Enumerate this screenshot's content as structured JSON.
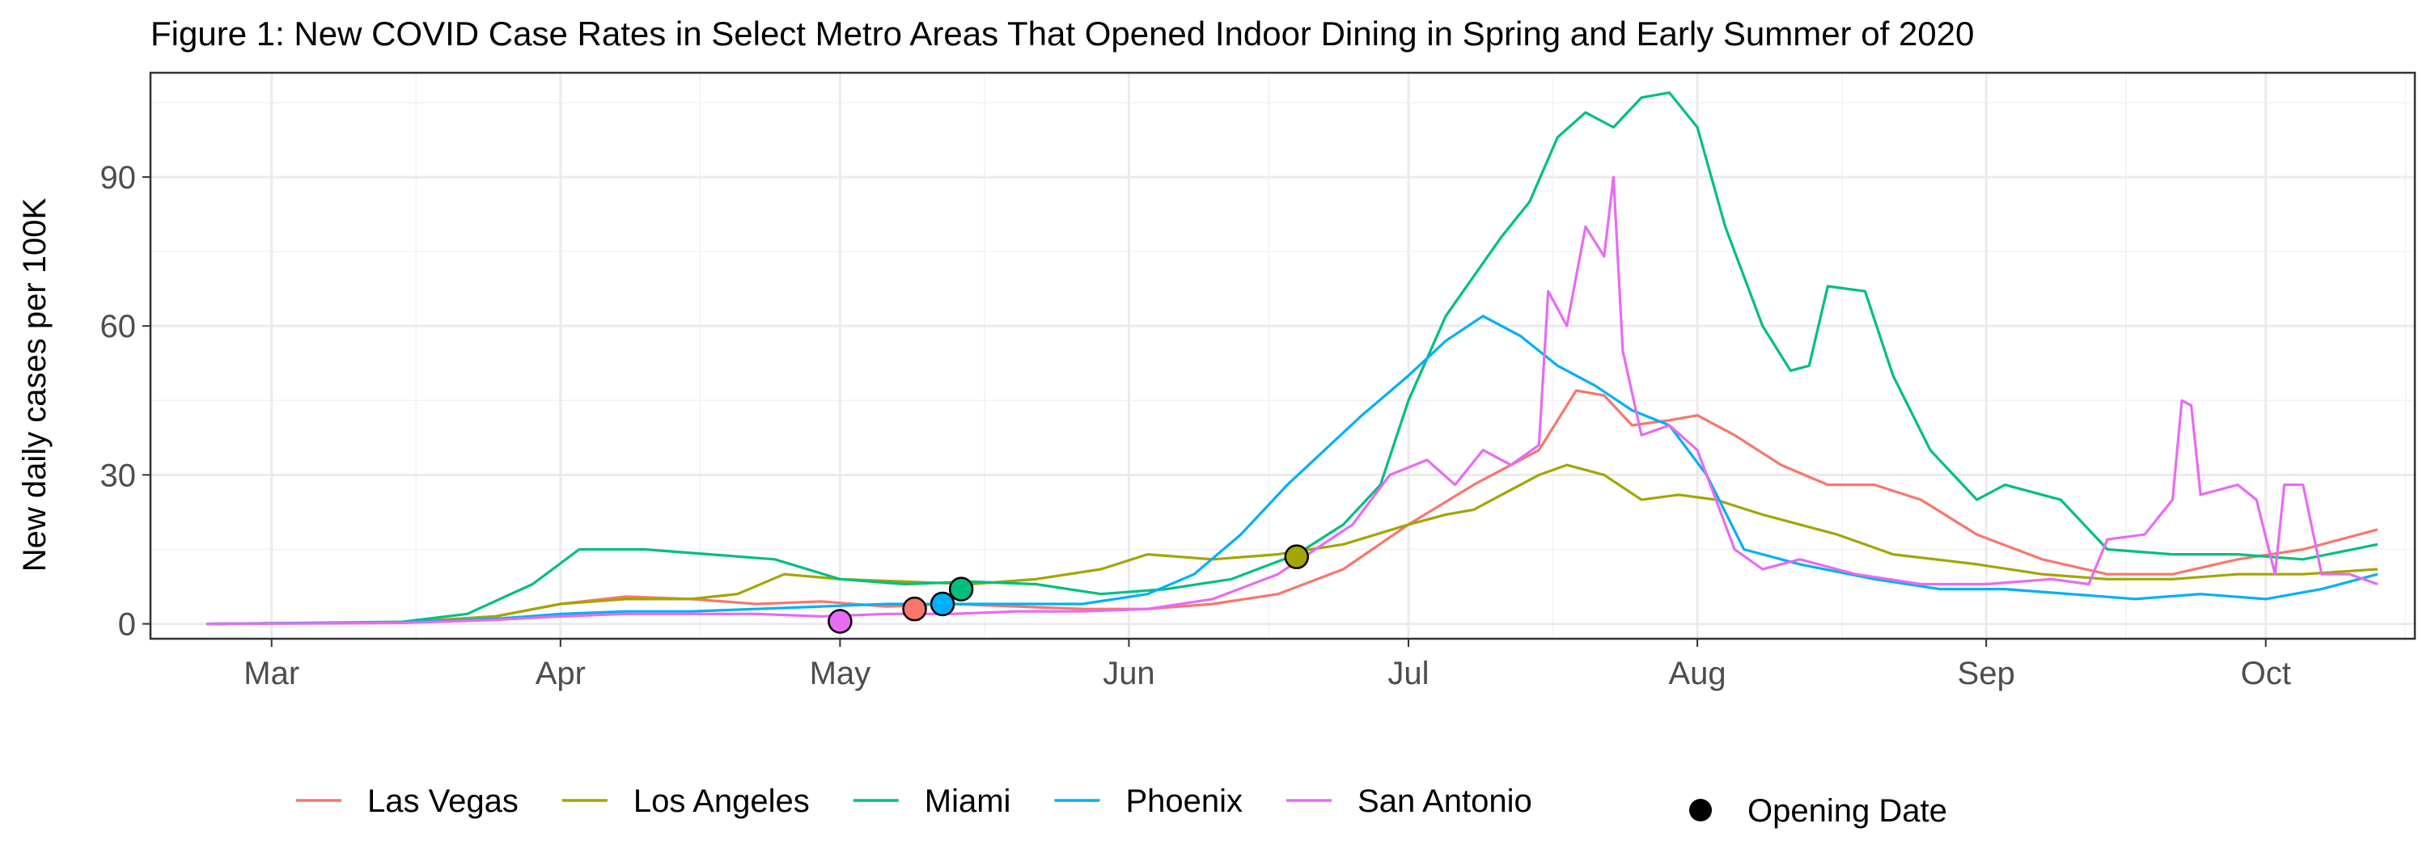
{
  "chart_data": {
    "type": "line",
    "title": "Figure 1: New COVID Case Rates in Select Metro Areas That Opened Indoor Dining in Spring and Early Summer of 2020",
    "xlabel": "",
    "ylabel": "New daily cases per 100K",
    "x_range": [
      "2020-02-17",
      "2020-10-17"
    ],
    "ylim": [
      -3,
      111
    ],
    "x_ticks": [
      {
        "date": "2020-03-01",
        "label": "Mar"
      },
      {
        "date": "2020-04-01",
        "label": "Apr"
      },
      {
        "date": "2020-05-01",
        "label": "May"
      },
      {
        "date": "2020-06-01",
        "label": "Jun"
      },
      {
        "date": "2020-07-01",
        "label": "Jul"
      },
      {
        "date": "2020-08-01",
        "label": "Aug"
      },
      {
        "date": "2020-09-01",
        "label": "Sep"
      },
      {
        "date": "2020-10-01",
        "label": "Oct"
      }
    ],
    "y_ticks": [
      {
        "value": 0,
        "label": "0"
      },
      {
        "value": 30,
        "label": "30"
      },
      {
        "value": 60,
        "label": "60"
      },
      {
        "value": 90,
        "label": "90"
      }
    ],
    "grid": true,
    "legend_position": "bottom",
    "series": [
      {
        "name": "Las Vegas",
        "color": "#F8766D",
        "opening": {
          "x": "2020-05-09",
          "y": 3
        },
        "points": [
          [
            "2020-02-23",
            0
          ],
          [
            "2020-03-15",
            0.3
          ],
          [
            "2020-03-25",
            1.5
          ],
          [
            "2020-04-01",
            4
          ],
          [
            "2020-04-08",
            5.5
          ],
          [
            "2020-04-15",
            5
          ],
          [
            "2020-04-22",
            4
          ],
          [
            "2020-04-29",
            4.5
          ],
          [
            "2020-05-06",
            3.5
          ],
          [
            "2020-05-13",
            4
          ],
          [
            "2020-05-20",
            3.5
          ],
          [
            "2020-05-27",
            3
          ],
          [
            "2020-06-03",
            3
          ],
          [
            "2020-06-10",
            4
          ],
          [
            "2020-06-17",
            6
          ],
          [
            "2020-06-24",
            11
          ],
          [
            "2020-07-01",
            20
          ],
          [
            "2020-07-08",
            28
          ],
          [
            "2020-07-15",
            35
          ],
          [
            "2020-07-19",
            47
          ],
          [
            "2020-07-22",
            46
          ],
          [
            "2020-07-25",
            40
          ],
          [
            "2020-07-29",
            41
          ],
          [
            "2020-08-01",
            42
          ],
          [
            "2020-08-05",
            38
          ],
          [
            "2020-08-10",
            32
          ],
          [
            "2020-08-15",
            28
          ],
          [
            "2020-08-20",
            28
          ],
          [
            "2020-08-25",
            25
          ],
          [
            "2020-08-31",
            18
          ],
          [
            "2020-09-07",
            13
          ],
          [
            "2020-09-14",
            10
          ],
          [
            "2020-09-21",
            10
          ],
          [
            "2020-09-28",
            13
          ],
          [
            "2020-10-05",
            15
          ],
          [
            "2020-10-13",
            19
          ]
        ]
      },
      {
        "name": "Los Angeles",
        "color": "#A3A500",
        "opening": {
          "x": "2020-06-19",
          "y": 13.5
        },
        "points": [
          [
            "2020-02-23",
            0
          ],
          [
            "2020-03-15",
            0.3
          ],
          [
            "2020-03-25",
            1.5
          ],
          [
            "2020-04-01",
            4
          ],
          [
            "2020-04-08",
            5
          ],
          [
            "2020-04-15",
            5
          ],
          [
            "2020-04-20",
            6
          ],
          [
            "2020-04-25",
            10
          ],
          [
            "2020-05-01",
            9
          ],
          [
            "2020-05-08",
            8.5
          ],
          [
            "2020-05-15",
            8
          ],
          [
            "2020-05-22",
            9
          ],
          [
            "2020-05-29",
            11
          ],
          [
            "2020-06-03",
            14
          ],
          [
            "2020-06-10",
            13
          ],
          [
            "2020-06-17",
            14
          ],
          [
            "2020-06-24",
            16
          ],
          [
            "2020-07-01",
            20
          ],
          [
            "2020-07-05",
            22
          ],
          [
            "2020-07-08",
            23
          ],
          [
            "2020-07-12",
            27
          ],
          [
            "2020-07-15",
            30
          ],
          [
            "2020-07-18",
            32
          ],
          [
            "2020-07-22",
            30
          ],
          [
            "2020-07-26",
            25
          ],
          [
            "2020-07-30",
            26
          ],
          [
            "2020-08-03",
            25
          ],
          [
            "2020-08-08",
            22
          ],
          [
            "2020-08-12",
            20
          ],
          [
            "2020-08-16",
            18
          ],
          [
            "2020-08-22",
            14
          ],
          [
            "2020-08-31",
            12
          ],
          [
            "2020-09-07",
            10
          ],
          [
            "2020-09-14",
            9
          ],
          [
            "2020-09-21",
            9
          ],
          [
            "2020-09-28",
            10
          ],
          [
            "2020-10-05",
            10
          ],
          [
            "2020-10-13",
            11
          ]
        ]
      },
      {
        "name": "Miami",
        "color": "#00BF7D",
        "opening": {
          "x": "2020-05-14",
          "y": 7
        },
        "points": [
          [
            "2020-02-23",
            0
          ],
          [
            "2020-03-15",
            0.4
          ],
          [
            "2020-03-22",
            2
          ],
          [
            "2020-03-29",
            8
          ],
          [
            "2020-04-03",
            15
          ],
          [
            "2020-04-10",
            15
          ],
          [
            "2020-04-17",
            14
          ],
          [
            "2020-04-24",
            13
          ],
          [
            "2020-05-01",
            9
          ],
          [
            "2020-05-08",
            8
          ],
          [
            "2020-05-15",
            8.5
          ],
          [
            "2020-05-22",
            8
          ],
          [
            "2020-05-29",
            6
          ],
          [
            "2020-06-05",
            7
          ],
          [
            "2020-06-12",
            9
          ],
          [
            "2020-06-19",
            14
          ],
          [
            "2020-06-24",
            20
          ],
          [
            "2020-06-28",
            28
          ],
          [
            "2020-07-01",
            45
          ],
          [
            "2020-07-05",
            62
          ],
          [
            "2020-07-08",
            70
          ],
          [
            "2020-07-11",
            78
          ],
          [
            "2020-07-14",
            85
          ],
          [
            "2020-07-17",
            98
          ],
          [
            "2020-07-20",
            103
          ],
          [
            "2020-07-23",
            100
          ],
          [
            "2020-07-26",
            106
          ],
          [
            "2020-07-29",
            107
          ],
          [
            "2020-08-01",
            100
          ],
          [
            "2020-08-04",
            80
          ],
          [
            "2020-08-08",
            60
          ],
          [
            "2020-08-11",
            51
          ],
          [
            "2020-08-13",
            52
          ],
          [
            "2020-08-15",
            68
          ],
          [
            "2020-08-19",
            67
          ],
          [
            "2020-08-22",
            50
          ],
          [
            "2020-08-26",
            35
          ],
          [
            "2020-08-31",
            25
          ],
          [
            "2020-09-03",
            28
          ],
          [
            "2020-09-09",
            25
          ],
          [
            "2020-09-14",
            15
          ],
          [
            "2020-09-21",
            14
          ],
          [
            "2020-09-28",
            14
          ],
          [
            "2020-10-05",
            13
          ],
          [
            "2020-10-13",
            16
          ]
        ]
      },
      {
        "name": "Phoenix",
        "color": "#00B0F6",
        "opening": {
          "x": "2020-05-12",
          "y": 4
        },
        "points": [
          [
            "2020-02-23",
            0
          ],
          [
            "2020-03-15",
            0.3
          ],
          [
            "2020-03-25",
            1
          ],
          [
            "2020-04-01",
            2
          ],
          [
            "2020-04-08",
            2.5
          ],
          [
            "2020-04-15",
            2.5
          ],
          [
            "2020-04-22",
            3
          ],
          [
            "2020-04-29",
            3.5
          ],
          [
            "2020-05-06",
            4
          ],
          [
            "2020-05-13",
            4
          ],
          [
            "2020-05-20",
            4
          ],
          [
            "2020-05-27",
            4
          ],
          [
            "2020-06-03",
            6
          ],
          [
            "2020-06-08",
            10
          ],
          [
            "2020-06-13",
            18
          ],
          [
            "2020-06-18",
            28
          ],
          [
            "2020-06-22",
            35
          ],
          [
            "2020-06-26",
            42
          ],
          [
            "2020-07-01",
            50
          ],
          [
            "2020-07-05",
            57
          ],
          [
            "2020-07-09",
            62
          ],
          [
            "2020-07-13",
            58
          ],
          [
            "2020-07-17",
            52
          ],
          [
            "2020-07-21",
            48
          ],
          [
            "2020-07-25",
            43
          ],
          [
            "2020-07-29",
            40
          ],
          [
            "2020-08-02",
            30
          ],
          [
            "2020-08-06",
            15
          ],
          [
            "2020-08-12",
            12
          ],
          [
            "2020-08-20",
            9
          ],
          [
            "2020-08-27",
            7
          ],
          [
            "2020-09-03",
            7
          ],
          [
            "2020-09-10",
            6
          ],
          [
            "2020-09-17",
            5
          ],
          [
            "2020-09-24",
            6
          ],
          [
            "2020-10-01",
            5
          ],
          [
            "2020-10-07",
            7
          ],
          [
            "2020-10-13",
            10
          ]
        ]
      },
      {
        "name": "San Antonio",
        "color": "#E76BF3",
        "opening": {
          "x": "2020-05-01",
          "y": 0.5
        },
        "points": [
          [
            "2020-02-23",
            0
          ],
          [
            "2020-03-15",
            0.2
          ],
          [
            "2020-03-25",
            0.8
          ],
          [
            "2020-04-01",
            1.5
          ],
          [
            "2020-04-08",
            2
          ],
          [
            "2020-04-15",
            2
          ],
          [
            "2020-04-22",
            2
          ],
          [
            "2020-04-29",
            1.5
          ],
          [
            "2020-05-06",
            2
          ],
          [
            "2020-05-13",
            2
          ],
          [
            "2020-05-20",
            2.5
          ],
          [
            "2020-05-27",
            2.5
          ],
          [
            "2020-06-03",
            3
          ],
          [
            "2020-06-10",
            5
          ],
          [
            "2020-06-17",
            10
          ],
          [
            "2020-06-21",
            15
          ],
          [
            "2020-06-25",
            20
          ],
          [
            "2020-06-29",
            30
          ],
          [
            "2020-07-03",
            33
          ],
          [
            "2020-07-06",
            28
          ],
          [
            "2020-07-09",
            35
          ],
          [
            "2020-07-12",
            32
          ],
          [
            "2020-07-15",
            36
          ],
          [
            "2020-07-16",
            67
          ],
          [
            "2020-07-18",
            60
          ],
          [
            "2020-07-20",
            80
          ],
          [
            "2020-07-22",
            74
          ],
          [
            "2020-07-23",
            90
          ],
          [
            "2020-07-24",
            55
          ],
          [
            "2020-07-26",
            38
          ],
          [
            "2020-07-29",
            40
          ],
          [
            "2020-08-01",
            35
          ],
          [
            "2020-08-03",
            25
          ],
          [
            "2020-08-05",
            15
          ],
          [
            "2020-08-08",
            11
          ],
          [
            "2020-08-12",
            13
          ],
          [
            "2020-08-18",
            10
          ],
          [
            "2020-08-25",
            8
          ],
          [
            "2020-09-01",
            8
          ],
          [
            "2020-09-08",
            9
          ],
          [
            "2020-09-12",
            8
          ],
          [
            "2020-09-14",
            17
          ],
          [
            "2020-09-18",
            18
          ],
          [
            "2020-09-21",
            25
          ],
          [
            "2020-09-22",
            45
          ],
          [
            "2020-09-23",
            44
          ],
          [
            "2020-09-24",
            26
          ],
          [
            "2020-09-28",
            28
          ],
          [
            "2020-09-30",
            25
          ],
          [
            "2020-10-02",
            10
          ],
          [
            "2020-10-03",
            28
          ],
          [
            "2020-10-05",
            28
          ],
          [
            "2020-10-07",
            10
          ],
          [
            "2020-10-10",
            10
          ],
          [
            "2020-10-13",
            8
          ]
        ]
      }
    ],
    "legend": {
      "series_labels": [
        "Las Vegas",
        "Los Angeles",
        "Miami",
        "Phoenix",
        "San Antonio"
      ],
      "marker_label": "Opening Date"
    }
  }
}
